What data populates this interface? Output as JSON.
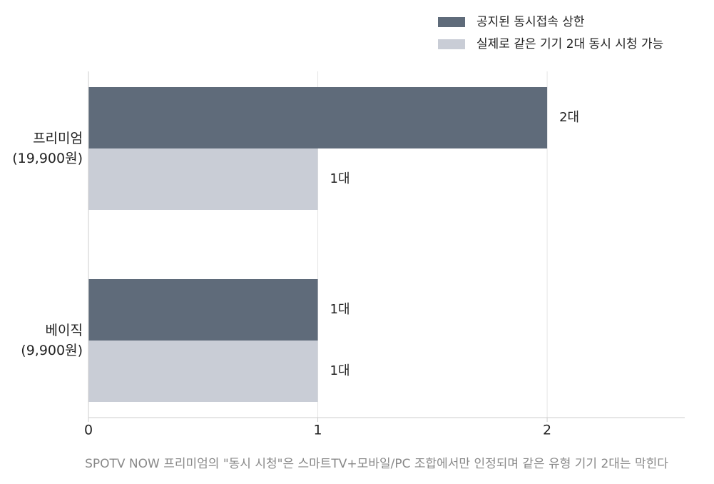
{
  "chart_data": {
    "type": "hbar",
    "categories": [
      "프리미엄\n(19,900원)",
      "베이직\n(9,900원)"
    ],
    "series": [
      {
        "name": "공지된 동시접속 상한",
        "color": "#5f6b7a",
        "values": [
          2,
          1
        ],
        "value_labels": [
          "2대",
          "1대"
        ]
      },
      {
        "name": "실제로 같은 기기 2대 동시 시청 가능",
        "color": "#c9cdd6",
        "values": [
          1,
          1
        ],
        "value_labels": [
          "1대",
          "1대"
        ]
      }
    ],
    "xlim": [
      0,
      2.6
    ],
    "xticks": [
      0,
      1,
      2
    ],
    "grid": true,
    "legend": "top-right",
    "note": "SPOTV NOW 프리미엄의 \"동시 시청\"은 스마트TV+모바일/PC 조합에서만 인정되며 같은 유형 기기 2대는 막힌다"
  }
}
